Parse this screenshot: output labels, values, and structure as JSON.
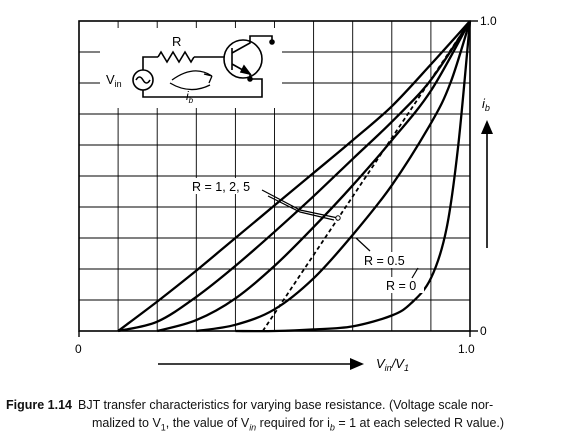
{
  "chart_data": {
    "type": "line",
    "xlim": [
      0,
      1
    ],
    "ylim": [
      0,
      1
    ],
    "grid": true,
    "x_ticks": [
      "0",
      "1.0"
    ],
    "y_ticks": [
      "0",
      "1.0"
    ],
    "xlabel": {
      "main": "V",
      "sub": "in",
      "sep": "/V",
      "sub2": "1"
    },
    "ylabel": {
      "main": "i",
      "sub": "b"
    },
    "series": [
      {
        "style": "solid",
        "x": [
          0.1,
          0.2,
          0.3,
          0.4,
          0.5,
          0.6,
          0.7,
          0.8,
          0.9,
          1.0
        ],
        "y": [
          0.0,
          0.095,
          0.195,
          0.3,
          0.405,
          0.51,
          0.615,
          0.725,
          0.86,
          1.0
        ]
      },
      {
        "style": "solid",
        "x": [
          0.1,
          0.2,
          0.3,
          0.4,
          0.5,
          0.6,
          0.7,
          0.8,
          0.9,
          1.0
        ],
        "y": [
          0.0,
          0.03,
          0.11,
          0.21,
          0.32,
          0.435,
          0.555,
          0.675,
          0.81,
          1.0
        ]
      },
      {
        "style": "solid",
        "x": [
          0.2,
          0.3,
          0.4,
          0.5,
          0.6,
          0.7,
          0.8,
          0.9,
          1.0
        ],
        "y": [
          0.0,
          0.035,
          0.105,
          0.21,
          0.335,
          0.47,
          0.615,
          0.775,
          1.0
        ]
      },
      {
        "name": "R = 0.5",
        "style": "solid",
        "x": [
          0.3,
          0.4,
          0.5,
          0.6,
          0.7,
          0.8,
          0.9,
          0.95,
          1.0
        ],
        "y": [
          0.0,
          0.02,
          0.07,
          0.17,
          0.31,
          0.47,
          0.67,
          0.8,
          1.0
        ]
      },
      {
        "name": "R = 0",
        "style": "solid",
        "x": [
          0.4,
          0.5,
          0.6,
          0.7,
          0.8,
          0.85,
          0.9,
          0.94,
          0.97,
          1.0
        ],
        "y": [
          0.0,
          0.0,
          0.005,
          0.015,
          0.05,
          0.09,
          0.17,
          0.33,
          0.6,
          1.0
        ]
      },
      {
        "style": "dashed",
        "x": [
          0.47,
          1.0
        ],
        "y": [
          0.0,
          1.0
        ]
      }
    ],
    "annotations": [
      {
        "text": "R = 1, 2, 5"
      },
      {
        "text": "R = 0.5"
      },
      {
        "text": "R = 0"
      }
    ]
  },
  "inset": {
    "resistor_label": "R",
    "source_label": "V",
    "source_sub": "in",
    "current_label": "i",
    "current_sub": "b"
  },
  "caption": {
    "label": "Figure 1.14",
    "line1": "BJT transfer characteristics for varying base resistance. (Voltage scale nor-",
    "line2": "malized to V",
    "line2_sub": "1",
    "line2_b": ", the value of V",
    "line2_sub2": "in",
    "line2_c": " required for i",
    "line2_sub3": "b",
    "line2_d": " = 1 at each selected R value.)"
  }
}
